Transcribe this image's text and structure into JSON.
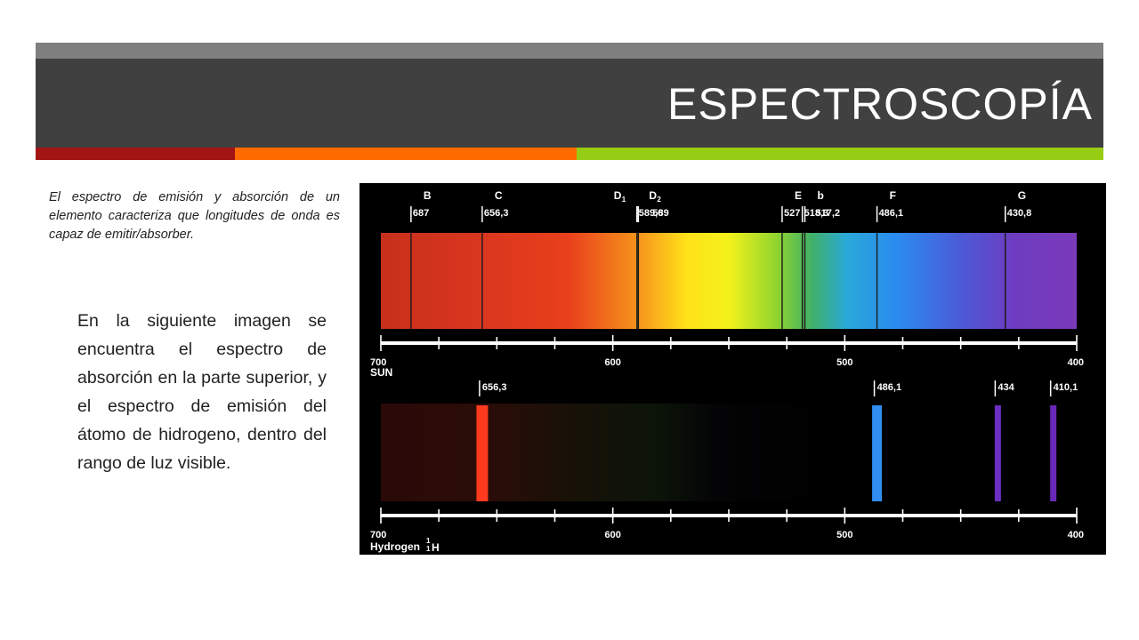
{
  "slide": {
    "title": "ESPECTROSCOPÍA",
    "intro_text": "El espectro de emisión y absorción de un elemento caracteriza que longitudes de onda es capaz de emitir/absorber.",
    "body_text": "En la siguiente imagen se encuentra el espectro de absorción en la parte superior, y el espectro de emisión del átomo de hidrogeno, dentro del rango de luz visible.",
    "colors": {
      "title_bar": "#404040",
      "title_strip": "#7f7f7f",
      "accent_red": "#a31515",
      "accent_orange": "#ff6a00",
      "accent_green": "#96cc14"
    }
  },
  "figure": {
    "axis_ticks": [
      "700",
      "600",
      "500",
      "400"
    ],
    "sun": {
      "label": "SUN",
      "lines": [
        {
          "letter": "B",
          "value": "687",
          "nm": 687
        },
        {
          "letter": "C",
          "value": "656,3",
          "nm": 656.3
        },
        {
          "letter": "D",
          "sub": "1",
          "value": "589,6",
          "nm": 589.6
        },
        {
          "letter": "D",
          "sub": "2",
          "value": "589",
          "nm": 589
        },
        {
          "letter": "E",
          "value": "527",
          "nm": 527
        },
        {
          "letter": "",
          "value": "518,3",
          "nm": 518.3
        },
        {
          "letter": "b",
          "value": "517,2",
          "nm": 517.2
        },
        {
          "letter": "F",
          "value": "486,1",
          "nm": 486.1
        },
        {
          "letter": "G",
          "value": "430,8",
          "nm": 430.8
        }
      ]
    },
    "hydrogen": {
      "label": "Hydrogen",
      "symbol": "H",
      "mass_number": "1",
      "atomic_number": "1",
      "lines": [
        {
          "value": "656,3",
          "nm": 656.3,
          "color": "#ff3a1e"
        },
        {
          "value": "486,1",
          "nm": 486.1,
          "color": "#2f8ef0"
        },
        {
          "value": "434",
          "nm": 434,
          "color": "#6a2fc0"
        },
        {
          "value": "410,1",
          "nm": 410.1,
          "color": "#6a28b8"
        }
      ]
    }
  }
}
